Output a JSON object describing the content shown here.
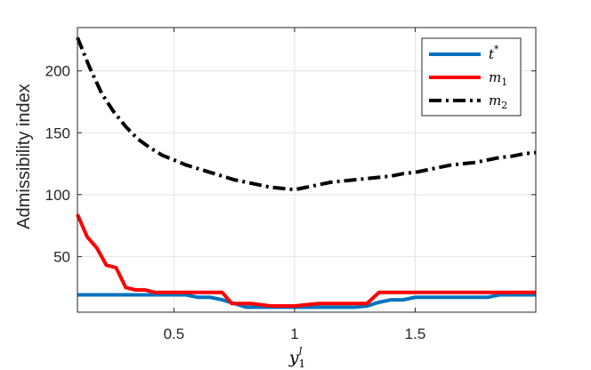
{
  "chart_data": {
    "type": "line",
    "title": "",
    "xlabel": "y",
    "xlabel_sup": "l",
    "xlabel_sub": "1",
    "ylabel": "Admissibility index",
    "xlim": [
      0.1,
      2.0
    ],
    "ylim": [
      5,
      235
    ],
    "xticks": [
      0.5,
      1,
      1.5
    ],
    "xtick_labels": [
      "0.5",
      "1",
      "1.5"
    ],
    "yticks": [
      50,
      100,
      150,
      200
    ],
    "ytick_labels": [
      "50",
      "100",
      "150",
      "200"
    ],
    "grid": true,
    "legend_position": "top-right",
    "series": [
      {
        "name": "t",
        "name_sup": "*",
        "color": "#0072BD",
        "dash": "solid",
        "x": [
          0.1,
          0.15,
          0.2,
          0.25,
          0.3,
          0.35,
          0.4,
          0.45,
          0.5,
          0.55,
          0.6,
          0.65,
          0.7,
          0.75,
          0.8,
          0.85,
          0.9,
          0.95,
          1.0,
          1.05,
          1.1,
          1.15,
          1.2,
          1.25,
          1.3,
          1.35,
          1.4,
          1.45,
          1.5,
          1.55,
          1.6,
          1.65,
          1.7,
          1.75,
          1.8,
          1.85,
          1.9,
          1.95,
          2.0
        ],
        "values": [
          19,
          19,
          19,
          19,
          19,
          19,
          19,
          19,
          19,
          19,
          17,
          17,
          15,
          12,
          9,
          9,
          9,
          9,
          9,
          9,
          9,
          9,
          9,
          9,
          10,
          13,
          15,
          15,
          17,
          17,
          17,
          17,
          17,
          17,
          17,
          19,
          19,
          19,
          19
        ]
      },
      {
        "name": "m",
        "name_sub": "1",
        "color": "#FF0000",
        "dash": "solid",
        "x": [
          0.1,
          0.14,
          0.18,
          0.22,
          0.26,
          0.3,
          0.34,
          0.38,
          0.42,
          0.46,
          0.5,
          0.55,
          0.6,
          0.65,
          0.7,
          0.74,
          0.78,
          0.82,
          0.86,
          0.9,
          0.95,
          1.0,
          1.05,
          1.1,
          1.15,
          1.2,
          1.25,
          1.3,
          1.35,
          1.4,
          1.45,
          1.5,
          1.55,
          1.6,
          1.65,
          1.7,
          1.75,
          1.8,
          1.85,
          1.9,
          1.95,
          2.0
        ],
        "values": [
          84,
          66,
          57,
          43,
          41,
          25,
          23,
          23,
          21,
          21,
          21,
          21,
          21,
          21,
          21,
          12,
          12,
          12,
          11,
          10,
          10,
          10,
          11,
          12,
          12,
          12,
          12,
          12,
          21,
          21,
          21,
          21,
          21,
          21,
          21,
          21,
          21,
          21,
          21,
          21,
          21,
          21
        ]
      },
      {
        "name": "m",
        "name_sub": "2",
        "color": "#000000",
        "dash": "dashdot",
        "x": [
          0.1,
          0.15,
          0.2,
          0.25,
          0.3,
          0.35,
          0.4,
          0.45,
          0.5,
          0.55,
          0.6,
          0.65,
          0.7,
          0.75,
          0.8,
          0.85,
          0.9,
          0.95,
          1.0,
          1.05,
          1.1,
          1.15,
          1.2,
          1.25,
          1.3,
          1.35,
          1.4,
          1.45,
          1.5,
          1.55,
          1.6,
          1.65,
          1.7,
          1.75,
          1.8,
          1.85,
          1.9,
          1.95,
          2.0
        ],
        "values": [
          227,
          203,
          182,
          167,
          155,
          145,
          138,
          132,
          128,
          124,
          121,
          118,
          115,
          112,
          110,
          108,
          106,
          105,
          104,
          106,
          108,
          110,
          111,
          112,
          113,
          114,
          115,
          117,
          118,
          120,
          122,
          124,
          125,
          126,
          128,
          130,
          131,
          133,
          134
        ]
      }
    ]
  }
}
